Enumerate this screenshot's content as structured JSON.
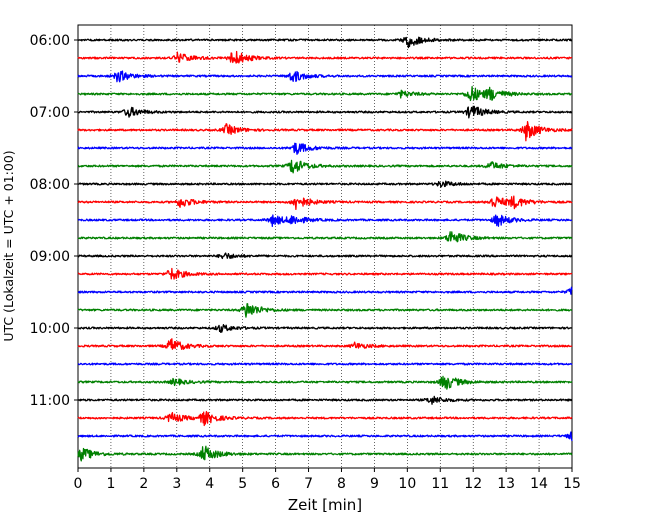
{
  "chart_data": {
    "type": "line",
    "subtype": "seismogram-helicorder",
    "title": "",
    "xlabel": "Zeit  [min]",
    "ylabel": "UTC (Lokalzeit = UTC + 01:00)",
    "xlim": [
      0,
      15
    ],
    "x_ticks": [
      "0",
      "1",
      "2",
      "3",
      "4",
      "5",
      "6",
      "7",
      "8",
      "9",
      "10",
      "11",
      "12",
      "13",
      "14",
      "15"
    ],
    "x_grid": "dotted vertical lines at each minute",
    "y_ticks": [
      {
        "label": "06:00",
        "row": 0
      },
      {
        "label": "07:00",
        "row": 4
      },
      {
        "label": "08:00",
        "row": 8
      },
      {
        "label": "09:00",
        "row": 12
      },
      {
        "label": "10:00",
        "row": 16
      },
      {
        "label": "11:00",
        "row": 20
      }
    ],
    "row_minutes": 15,
    "row_count": 24,
    "color_cycle": [
      "#000000",
      "#ff0000",
      "#0000ff",
      "#008000"
    ],
    "noise_level": 0.9,
    "bursts": [
      [
        [
          10.0,
          3.5
        ]
      ],
      [
        [
          3.0,
          2.5
        ],
        [
          4.7,
          4.0
        ]
      ],
      [
        [
          1.2,
          2.8
        ],
        [
          6.5,
          3.0
        ]
      ],
      [
        [
          9.8,
          1.5
        ],
        [
          11.9,
          4.0
        ],
        [
          12.5,
          2.5
        ]
      ],
      [
        [
          1.5,
          2.5
        ],
        [
          11.9,
          3.5
        ]
      ],
      [
        [
          4.5,
          2.5
        ],
        [
          13.6,
          4.5
        ]
      ],
      [
        [
          6.6,
          3.0
        ]
      ],
      [
        [
          6.5,
          3.8
        ],
        [
          12.5,
          2.0
        ]
      ],
      [
        [
          11.0,
          1.5
        ]
      ],
      [
        [
          3.1,
          2.5
        ],
        [
          6.6,
          3.5
        ],
        [
          12.6,
          3.0
        ],
        [
          13.2,
          2.5
        ]
      ],
      [
        [
          5.9,
          2.5
        ],
        [
          6.5,
          2.0
        ],
        [
          12.7,
          3.0
        ]
      ],
      [
        [
          11.3,
          3.5
        ]
      ],
      [
        [
          4.4,
          1.5
        ]
      ],
      [
        [
          2.8,
          3.0
        ]
      ],
      [
        [
          15.0,
          3.0
        ]
      ],
      [
        [
          5.1,
          4.0
        ]
      ],
      [
        [
          4.3,
          1.8
        ]
      ],
      [
        [
          2.8,
          3.5
        ],
        [
          8.4,
          1.5
        ]
      ],
      [
        []
      ],
      [
        [
          2.9,
          1.5
        ],
        [
          11.1,
          4.0
        ]
      ],
      [
        [
          10.7,
          2.0
        ]
      ],
      [
        [
          2.8,
          2.5
        ],
        [
          3.8,
          3.2
        ]
      ],
      [
        [
          15.0,
          3.0
        ]
      ],
      [
        [
          0.1,
          3.0
        ],
        [
          3.8,
          4.0
        ]
      ]
    ]
  }
}
